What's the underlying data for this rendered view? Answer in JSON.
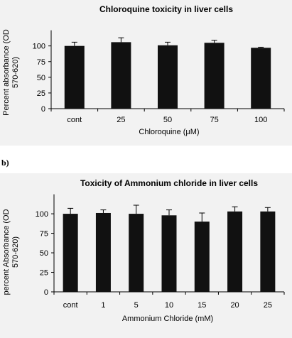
{
  "panel_labels": {
    "b": "b)"
  },
  "chart_data": [
    {
      "type": "bar",
      "title": "Chloroquine toxicity in liver cells",
      "xlabel": "Chloroquine (μM)",
      "ylabel": "Percent absorbance (OD 570-620)",
      "categories": [
        "cont",
        "25",
        "50",
        "75",
        "100"
      ],
      "values": [
        100,
        106,
        101,
        105,
        97
      ],
      "errors": [
        6,
        7,
        5,
        4,
        1
      ],
      "ylim": [
        0,
        125
      ],
      "yticks": [
        0,
        25,
        50,
        75,
        100
      ],
      "bar_color": "#111111",
      "grid": false
    },
    {
      "type": "bar",
      "title": "Toxicity of Ammonium chloride in liver cells",
      "xlabel": "Ammonium Chloride (mM)",
      "ylabel": "percent Absorbance (OD 570-620)",
      "categories": [
        "cont",
        "1",
        "5",
        "10",
        "15",
        "20",
        "25"
      ],
      "values": [
        100,
        101,
        100,
        98,
        90,
        103,
        103
      ],
      "errors": [
        7,
        4,
        11,
        7,
        11,
        6,
        5
      ],
      "ylim": [
        0,
        125
      ],
      "yticks": [
        0,
        25,
        50,
        75,
        100
      ],
      "bar_color": "#111111",
      "grid": false
    }
  ]
}
